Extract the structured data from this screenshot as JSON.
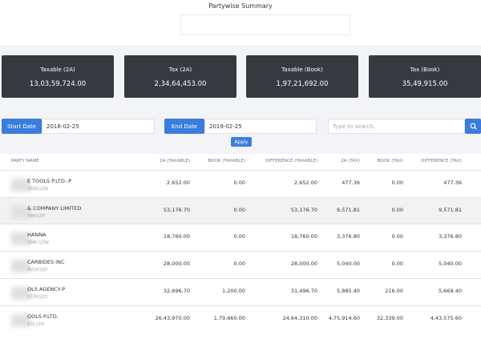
{
  "header": {
    "title": "Partywise Summary"
  },
  "cards": [
    {
      "label": "Taxable (2A)",
      "value": "13,03,59,724.00"
    },
    {
      "label": "Tax (2A)",
      "value": "2,34,64,453.00"
    },
    {
      "label": "Taxable (Book)",
      "value": "1,97,21,692.00"
    },
    {
      "label": "Tax (Book)",
      "value": "35,49,915.00"
    }
  ],
  "filters": {
    "start_label": "Start Date",
    "start_value": "2018-02-25",
    "end_label": "End Date",
    "end_value": "2019-02-25",
    "search_placeholder": "Type to search..",
    "apply": "Apply"
  },
  "table": {
    "columns": [
      "PARTY NAME",
      "2A (TAXABLE)",
      "BOOK (TAXABLE)",
      "DIFFERENCE (TAXABLE)",
      "2A (TAX)",
      "BOOK (TAX)",
      "DIFFERENCE (TAX)"
    ],
    "rows": [
      [
        {
          "name": "E TOOLS P.LTD.-P",
          "gstin": "393G1ZN"
        },
        "2,652.00",
        "0.00",
        "2,652.00",
        "477.36",
        "0.00",
        "477.36"
      ],
      [
        {
          "name": "& COMPANY LIMITED",
          "gstin": "39H1ZP"
        },
        "53,176.70",
        "0.00",
        "53,176.70",
        "9,571.81",
        "0.00",
        "9,571.81"
      ],
      [
        {
          "name": "HANNA",
          "gstin": "398C1ZW"
        },
        "18,760.00",
        "0.00",
        "18,760.00",
        "3,376.80",
        "0.00",
        "3,376.80"
      ],
      [
        {
          "name": "CARBIDES INC",
          "gstin": "9U1K1ZP"
        },
        "28,000.00",
        "0.00",
        "28,000.00",
        "5,040.00",
        "0.00",
        "5,040.00"
      ],
      [
        {
          "name": "OLS AGENCY-P",
          "gstin": "157K1Z3"
        },
        "32,696.70",
        "1,200.00",
        "31,496.70",
        "5,885.40",
        "216.00",
        "5,669.40"
      ],
      [
        {
          "name": "OOLS P.LTD.",
          "gstin": "57L1Z4"
        },
        "26,43,970.00",
        "1,79,660.00",
        "24,64,310.00",
        "4,75,914.60",
        "32,339.00",
        "4,43,575.60"
      ]
    ]
  }
}
